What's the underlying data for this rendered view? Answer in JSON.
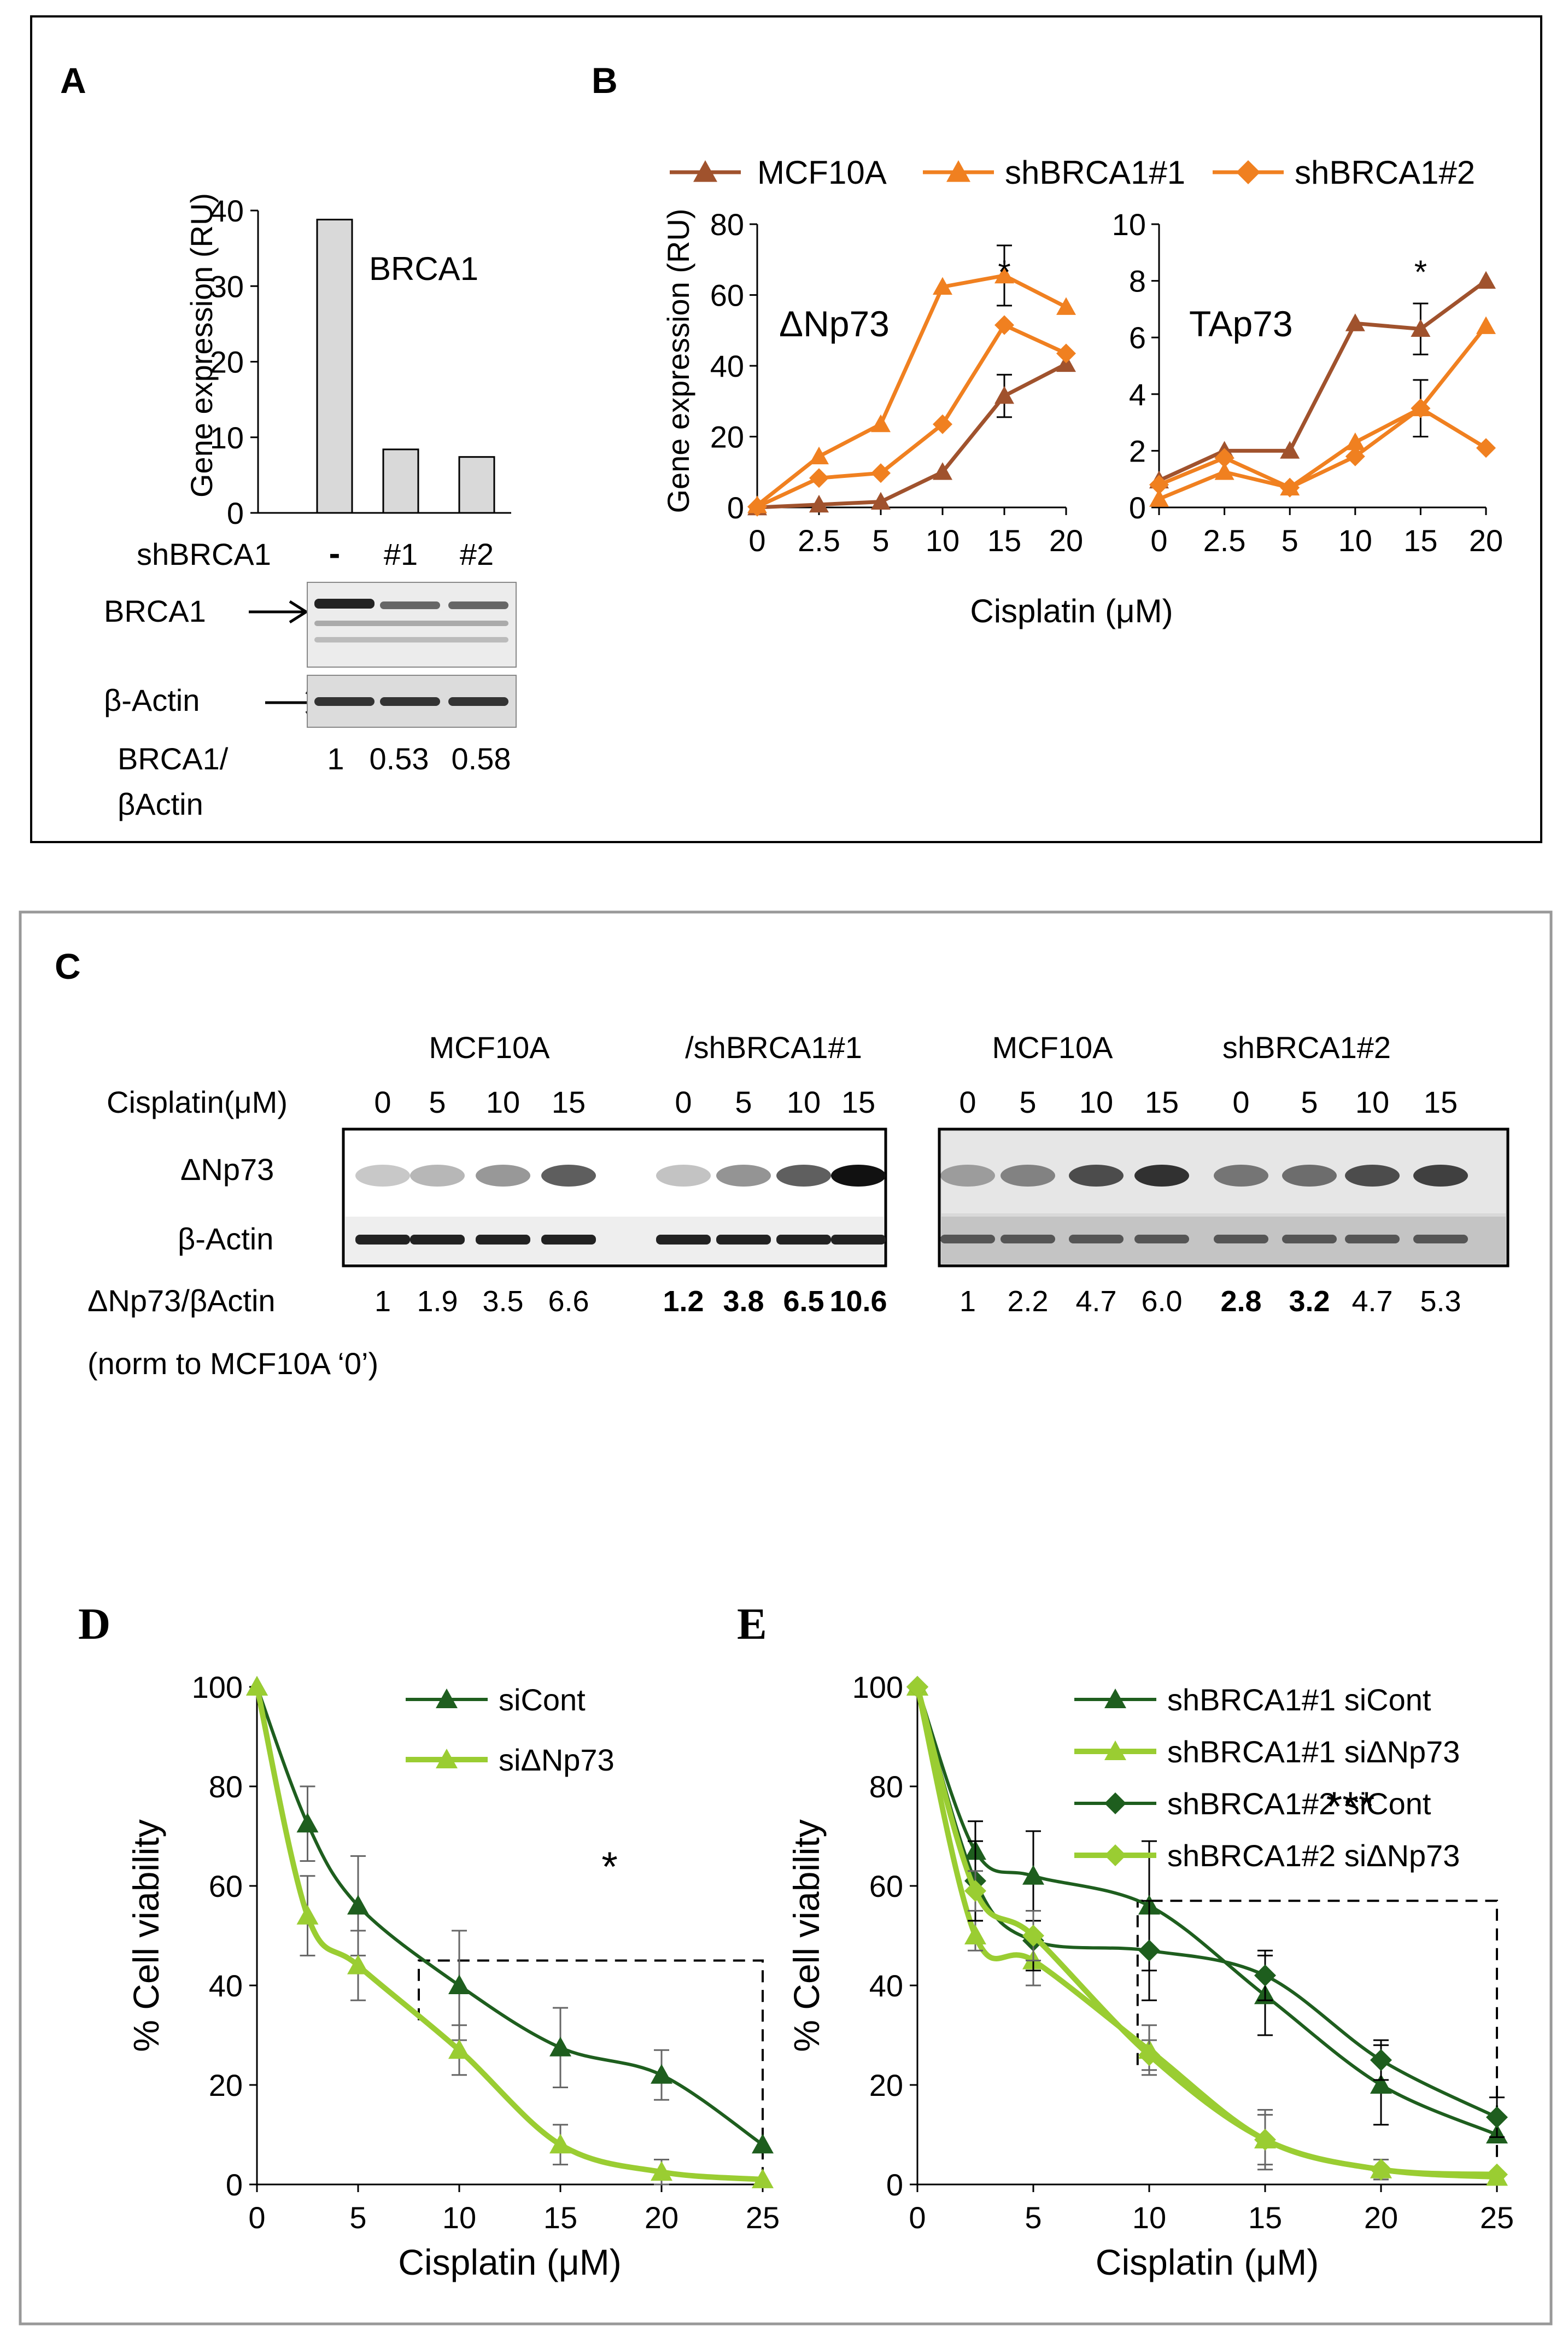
{
  "colors": {
    "mcf10a": "#A0522D",
    "shbrca1_1": "#F08020",
    "shbrca1_2": "#F08020",
    "si_cont": "#1E5E1E",
    "si_dnp73": "#9ACD32",
    "bar_fill": "#D9D9D9"
  },
  "panel_labels": {
    "a": "A",
    "b": "B",
    "c": "C",
    "d": "D",
    "e": "E"
  },
  "blots": {
    "a": {
      "shbrca1_label": "shBRCA1",
      "lanes": [
        "-",
        "#1",
        "#2"
      ],
      "brca1_label": "BRCA1",
      "actin_label": "β-Actin",
      "ratio_label_1": "BRCA1/",
      "ratio_label_2": "βActin",
      "ratios": [
        "1",
        "0.53",
        "0.58"
      ]
    },
    "c": {
      "group1": "MCF10A",
      "group2": "/shBRCA1#1",
      "group3": "MCF10A",
      "group4": "shBRCA1#2",
      "cisplatin_label": "Cisplatin(μM)",
      "doses": [
        "0",
        "5",
        "10",
        "15",
        "0",
        "5",
        "10",
        "15"
      ],
      "doses_right": [
        "0",
        "5",
        "10",
        "15",
        "0",
        "5",
        "10",
        "15"
      ],
      "dnp73_label": "ΔNp73",
      "actin_label": "β-Actin",
      "ratio_label": "ΔNp73/βActin",
      "ratios_left": [
        "1",
        "1.9",
        "3.5",
        "6.6",
        "1.2",
        "3.8",
        "6.5",
        "10.6"
      ],
      "ratios_right": [
        "1",
        "2.2",
        "4.7",
        "6.0",
        "2.8",
        "3.2",
        "4.7",
        "5.3"
      ],
      "norm_note": "(norm to MCF10A ‘0’)"
    }
  },
  "chart_data": [
    {
      "id": "A",
      "type": "bar",
      "title": "BRCA1",
      "ylabel": "Gene expression (RU)",
      "categories": [
        "-",
        "#1",
        "#2"
      ],
      "values": [
        38.8,
        8.4,
        7.4
      ],
      "ylim": [
        0,
        40
      ],
      "yticks": [
        0,
        10,
        20,
        30,
        40
      ]
    },
    {
      "id": "B-left",
      "type": "line",
      "title": "ΔNp73",
      "ylabel": "Gene expression (RU)",
      "x": [
        0,
        2.5,
        5,
        10,
        15,
        20
      ],
      "xticks": [
        "0",
        "2.5",
        "5",
        "10",
        "15",
        "20"
      ],
      "ylim": [
        0,
        80
      ],
      "yticks": [
        0,
        20,
        40,
        60,
        80
      ],
      "annotation": "*",
      "series": [
        {
          "name": "MCF10A",
          "marker": "triangle",
          "values": [
            0,
            0.8,
            1.6,
            10,
            31.5,
            40.5
          ],
          "err": [
            0,
            0,
            0,
            0,
            6,
            0
          ]
        },
        {
          "name": "shBRCA1#1",
          "marker": "triangle",
          "values": [
            0.6,
            14.4,
            23.5,
            62.3,
            65.5,
            56.6
          ],
          "err": [
            0,
            0,
            0,
            0,
            8.5,
            0
          ]
        },
        {
          "name": "shBRCA1#2",
          "marker": "diamond",
          "values": [
            0.2,
            8.3,
            9.7,
            23.5,
            51.5,
            43.5
          ],
          "err": [
            0,
            0,
            0,
            0,
            0,
            0
          ]
        }
      ]
    },
    {
      "id": "B-right",
      "type": "line",
      "title": "TAp73",
      "x": [
        0,
        2.5,
        5,
        10,
        15,
        20
      ],
      "xticks": [
        "0",
        "2.5",
        "5",
        "10",
        "15",
        "20"
      ],
      "xlabel": "Cisplatin (μM)",
      "ylim": [
        0,
        10
      ],
      "yticks": [
        0,
        2,
        4,
        6,
        8,
        10
      ],
      "annotation": "*",
      "series": [
        {
          "name": "MCF10A",
          "marker": "triangle",
          "values": [
            0.95,
            2.0,
            2.0,
            6.5,
            6.3,
            8.0
          ],
          "err": [
            0,
            0,
            0,
            0,
            0.9,
            0
          ]
        },
        {
          "name": "shBRCA1#1",
          "marker": "triangle",
          "values": [
            0.3,
            1.25,
            0.7,
            2.3,
            3.5,
            6.4
          ],
          "err": [
            0,
            0,
            0,
            0,
            1.0,
            0
          ]
        },
        {
          "name": "shBRCA1#2",
          "marker": "diamond",
          "values": [
            0.8,
            1.75,
            0.7,
            1.8,
            3.5,
            2.1
          ],
          "err": [
            0,
            0,
            0,
            0,
            0,
            0
          ]
        }
      ]
    },
    {
      "id": "D",
      "type": "line",
      "xlabel": "Cisplatin (μM)",
      "ylabel": "% Cell viability",
      "x": [
        0,
        2.5,
        5,
        10,
        15,
        20,
        25
      ],
      "xticks": [
        "0",
        "5",
        "10",
        "15",
        "20",
        "25"
      ],
      "ylim": [
        0,
        100
      ],
      "yticks": [
        0,
        20,
        40,
        60,
        80,
        100
      ],
      "annotation": "*",
      "series": [
        {
          "name": "siCont",
          "marker": "triangle",
          "values": [
            100,
            72.5,
            56,
            40,
            27.5,
            22,
            8
          ],
          "err": [
            0,
            7.5,
            10,
            11,
            8,
            5,
            0
          ]
        },
        {
          "name": "siΔNp73",
          "marker": "triangle",
          "values": [
            100,
            54,
            44,
            27,
            8,
            2.5,
            1
          ],
          "err": [
            0,
            8,
            7,
            5,
            4,
            2.5,
            0
          ]
        }
      ]
    },
    {
      "id": "E",
      "type": "line",
      "xlabel": "Cisplatin (μM)",
      "ylabel": "% Cell viability",
      "x": [
        0,
        2.5,
        5,
        10,
        15,
        20,
        25
      ],
      "xticks": [
        "0",
        "5",
        "10",
        "15",
        "20",
        "25"
      ],
      "ylim": [
        0,
        100
      ],
      "yticks": [
        0,
        20,
        40,
        60,
        80,
        100
      ],
      "annotation": "***",
      "series": [
        {
          "name": "shBRCA1#1 siCont",
          "marker": "triangle",
          "values": [
            100,
            67,
            62,
            56,
            38,
            20,
            10
          ],
          "err": [
            0,
            6,
            9,
            13,
            8,
            8,
            0
          ]
        },
        {
          "name": "shBRCA1#1 siΔNp73",
          "marker": "triangle",
          "values": [
            100,
            50,
            45,
            27,
            9,
            3,
            1.5
          ],
          "err": [
            0,
            3,
            5,
            5,
            6,
            2,
            0
          ]
        },
        {
          "name": "shBRCA1#2 siCont",
          "marker": "diamond",
          "values": [
            100,
            61,
            49,
            47,
            42,
            25,
            13.5
          ],
          "err": [
            0,
            8,
            6,
            10,
            5,
            4,
            4
          ]
        },
        {
          "name": "shBRCA1#2 siΔNp73",
          "marker": "diamond",
          "values": [
            100,
            59,
            50,
            26,
            9,
            3,
            2
          ],
          "err": [
            0,
            4,
            5,
            3,
            5,
            2,
            0
          ]
        }
      ]
    }
  ]
}
